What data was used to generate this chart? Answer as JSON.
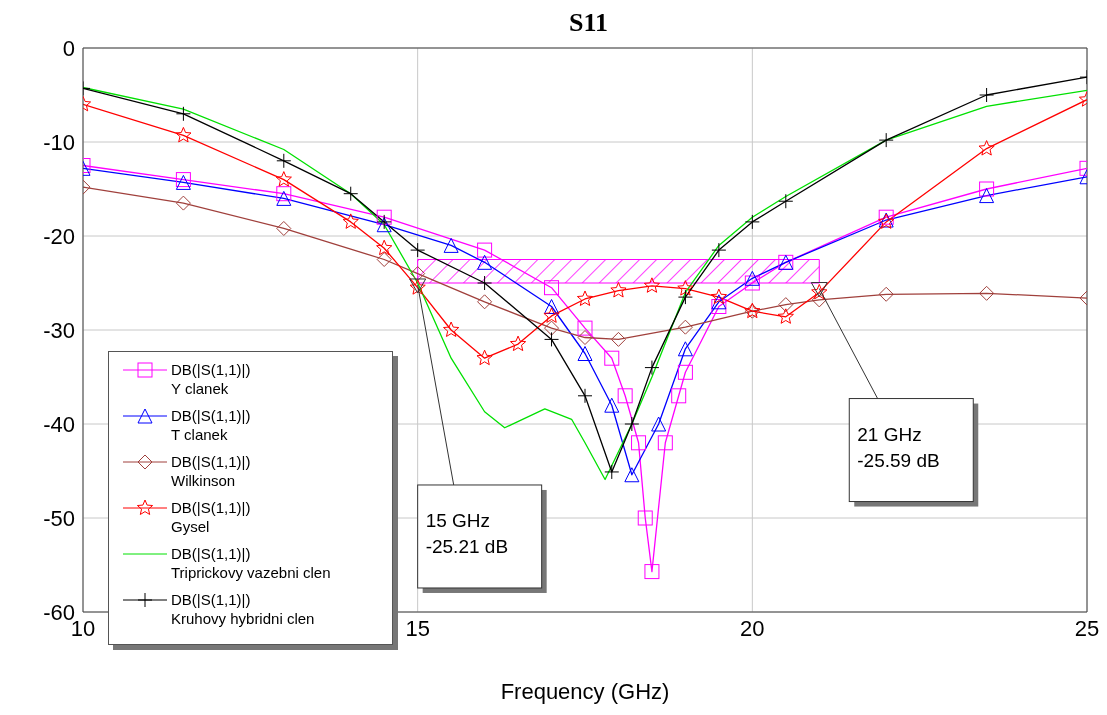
{
  "chart_data": {
    "type": "line",
    "title": "S11",
    "xlabel": "Frequency (GHz)",
    "xlim": [
      10,
      25
    ],
    "xticks": [
      10,
      15,
      20,
      25
    ],
    "ylim": [
      -60,
      0
    ],
    "yticks": [
      -60,
      -50,
      -40,
      -30,
      -20,
      -10,
      0
    ],
    "grid": true,
    "legend": "bottom left",
    "line_style": "solid",
    "series": [
      {
        "name": "DB(|S(1,1)|)\nY clanek",
        "color": "#ff00ff",
        "marker": "square",
        "x": [
          10,
          11.5,
          13,
          14.5,
          16,
          17,
          17.5,
          17.9,
          18.1,
          18.3,
          18.4,
          18.5,
          18.7,
          18.9,
          19,
          19.5,
          20,
          20.5,
          22,
          23.5,
          25
        ],
        "values": [
          -12.5,
          -14,
          -15.5,
          -18,
          -21.5,
          -25.5,
          -29.8,
          -33,
          -37,
          -42,
          -50,
          -55.7,
          -42,
          -37,
          -34.5,
          -27.5,
          -25,
          -22.8,
          -18,
          -15,
          -12.8
        ]
      },
      {
        "name": "DB(|S(1,1)|)\nT clanek",
        "color": "#0000ff",
        "marker": "triangle",
        "x": [
          10,
          11.5,
          13,
          14.5,
          15.5,
          16,
          17,
          17.5,
          17.9,
          18.2,
          18.6,
          19,
          19.5,
          20,
          20.5,
          22,
          23.5,
          25
        ],
        "values": [
          -12.8,
          -14.3,
          -16,
          -18.8,
          -21,
          -22.8,
          -27.5,
          -32.5,
          -38,
          -45.4,
          -40,
          -32,
          -27,
          -24.5,
          -22.8,
          -18.3,
          -15.7,
          -13.7
        ]
      },
      {
        "name": "DB(|S(1,1)|)\nWilkinson",
        "color": "#a0403c",
        "marker": "diamond",
        "x": [
          10,
          11.5,
          13,
          14.5,
          15,
          16,
          17,
          17.5,
          18,
          19,
          20,
          20.5,
          21,
          22,
          23.5,
          25
        ],
        "values": [
          -14.8,
          -16.5,
          -19.2,
          -22.5,
          -24,
          -27,
          -29.8,
          -30.8,
          -31,
          -29.7,
          -28,
          -27.3,
          -26.8,
          -26.2,
          -26.1,
          -26.6
        ]
      },
      {
        "name": "DB(|S(1,1)|)\nGysel",
        "color": "#ff0000",
        "marker": "star",
        "x": [
          10,
          11.5,
          13,
          14,
          14.5,
          15,
          15.5,
          16,
          16.5,
          17,
          17.5,
          18,
          18.5,
          19,
          19.5,
          20,
          20.5,
          21,
          22,
          23.5,
          25
        ],
        "values": [
          -6,
          -9.3,
          -14,
          -18.5,
          -21.3,
          -25.5,
          -30,
          -33,
          -31.5,
          -28.5,
          -26.7,
          -25.8,
          -25.3,
          -25.6,
          -26.5,
          -28,
          -28.6,
          -26,
          -18.5,
          -10.7,
          -5.5
        ]
      },
      {
        "name": "DB(|S(1,1)|)\nTriprickovy vazebni clen",
        "color": "#00e000",
        "marker": "none",
        "x": [
          10,
          11.5,
          13,
          14,
          14.5,
          15,
          15.5,
          16,
          16.3,
          16.9,
          17.3,
          17.5,
          17.8,
          18.2,
          18.5,
          19,
          19.5,
          20,
          20.5,
          22,
          23.5,
          25
        ],
        "values": [
          -4.2,
          -6.5,
          -10.8,
          -15.5,
          -18.8,
          -25,
          -33,
          -38.7,
          -40.4,
          -38.4,
          -39.5,
          -42,
          -45.9,
          -40,
          -35,
          -26,
          -21,
          -18,
          -15.8,
          -9.8,
          -6.2,
          -4.5
        ]
      },
      {
        "name": "DB(|S(1,1)|)\nKruhovy hybridni clen",
        "color": "#000000",
        "marker": "cross",
        "x": [
          10,
          11.5,
          13,
          14,
          14.5,
          15,
          16,
          17,
          17.5,
          17.9,
          18.2,
          18.5,
          19,
          19.5,
          20,
          20.5,
          22,
          23.5,
          25
        ],
        "values": [
          -4.3,
          -7,
          -12,
          -15.5,
          -18.5,
          -21.5,
          -25,
          -31,
          -37,
          -45.1,
          -40,
          -34,
          -26.5,
          -21.5,
          -18.5,
          -16.3,
          -9.8,
          -5,
          -3.1
        ]
      }
    ],
    "bands": [
      {
        "axis": "y",
        "from": -25,
        "to": -22.5,
        "color": "#ff00ff"
      }
    ],
    "annotations": [
      {
        "text": "15 GHz\n-25.21 dB",
        "x": 15,
        "y": -25.21
      },
      {
        "text": "21 GHz\n-25.59 dB",
        "x": 21,
        "y": -25.59
      }
    ]
  }
}
